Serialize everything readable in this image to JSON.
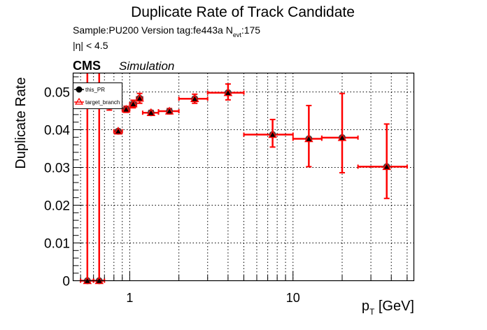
{
  "chart_data": {
    "type": "scatter",
    "title": "Duplicate Rate of Track Candidate",
    "subtitle_sample": "Sample:PU200   Version tag:fe443a  N",
    "subtitle_sub": "evt",
    "subtitle_count": ":175",
    "eta_cut": "|η| < 4.5",
    "cms_label": "CMS",
    "simulation_label": "Simulation",
    "xlabel_main": "p",
    "xlabel_sub": "T",
    "xlabel_unit": " [GeV]",
    "ylabel": "Duplicate Rate",
    "xscale": "log",
    "xlim": [
      0.45,
      55
    ],
    "ylim": [
      0,
      0.055
    ],
    "grid": true,
    "legend_placement": "top-left",
    "y_ticks": [
      "0",
      "0.01",
      "0.02",
      "0.03",
      "0.04",
      "0.05"
    ],
    "x_ticks": [
      "1",
      "10"
    ],
    "colors": {
      "this_PR": "#000000",
      "target_branch": "#ff0000"
    },
    "series": [
      {
        "name": "this_PR",
        "marker": "filled-circle"
      },
      {
        "name": "target_branch",
        "marker": "open-triangle"
      }
    ],
    "points": [
      {
        "x": 0.55,
        "xlo": 0.5,
        "xhi": 0.6,
        "y": 0.0,
        "elo": 0.0,
        "ehi": 0.06
      },
      {
        "x": 0.65,
        "xlo": 0.6,
        "xhi": 0.7,
        "y": 0.0,
        "elo": 0.0,
        "ehi": 0.06
      },
      {
        "x": 0.75,
        "xlo": 0.7,
        "xhi": 0.8,
        "y": 0.047,
        "elo": 0.0018,
        "ehi": 0.0018
      },
      {
        "x": 0.85,
        "xlo": 0.8,
        "xhi": 0.9,
        "y": 0.0396,
        "elo": 0.0005,
        "ehi": 0.0005
      },
      {
        "x": 0.95,
        "xlo": 0.9,
        "xhi": 1.0,
        "y": 0.0454,
        "elo": 0.0008,
        "ehi": 0.0008
      },
      {
        "x": 1.05,
        "xlo": 1.0,
        "xhi": 1.1,
        "y": 0.0468,
        "elo": 0.001,
        "ehi": 0.001
      },
      {
        "x": 1.15,
        "xlo": 1.1,
        "xhi": 1.2,
        "y": 0.0483,
        "elo": 0.0013,
        "ehi": 0.0013
      },
      {
        "x": 1.35,
        "xlo": 1.2,
        "xhi": 1.5,
        "y": 0.0445,
        "elo": 0.0006,
        "ehi": 0.0006
      },
      {
        "x": 1.75,
        "xlo": 1.5,
        "xhi": 2.0,
        "y": 0.0449,
        "elo": 0.0007,
        "ehi": 0.0007
      },
      {
        "x": 2.5,
        "xlo": 2.0,
        "xhi": 3.0,
        "y": 0.0482,
        "elo": 0.0012,
        "ehi": 0.0012
      },
      {
        "x": 4.0,
        "xlo": 3.0,
        "xhi": 5.0,
        "y": 0.0498,
        "elo": 0.0019,
        "ehi": 0.0023
      },
      {
        "x": 7.5,
        "xlo": 5.0,
        "xhi": 10.0,
        "y": 0.0387,
        "elo": 0.0033,
        "ehi": 0.004
      },
      {
        "x": 12.5,
        "xlo": 10.0,
        "xhi": 15.0,
        "y": 0.0376,
        "elo": 0.0074,
        "ehi": 0.0088
      },
      {
        "x": 20.0,
        "xlo": 15.0,
        "xhi": 25.0,
        "y": 0.0379,
        "elo": 0.0093,
        "ehi": 0.0117
      },
      {
        "x": 37.5,
        "xlo": 25.0,
        "xhi": 50.0,
        "y": 0.0302,
        "elo": 0.0084,
        "ehi": 0.0113
      }
    ]
  }
}
